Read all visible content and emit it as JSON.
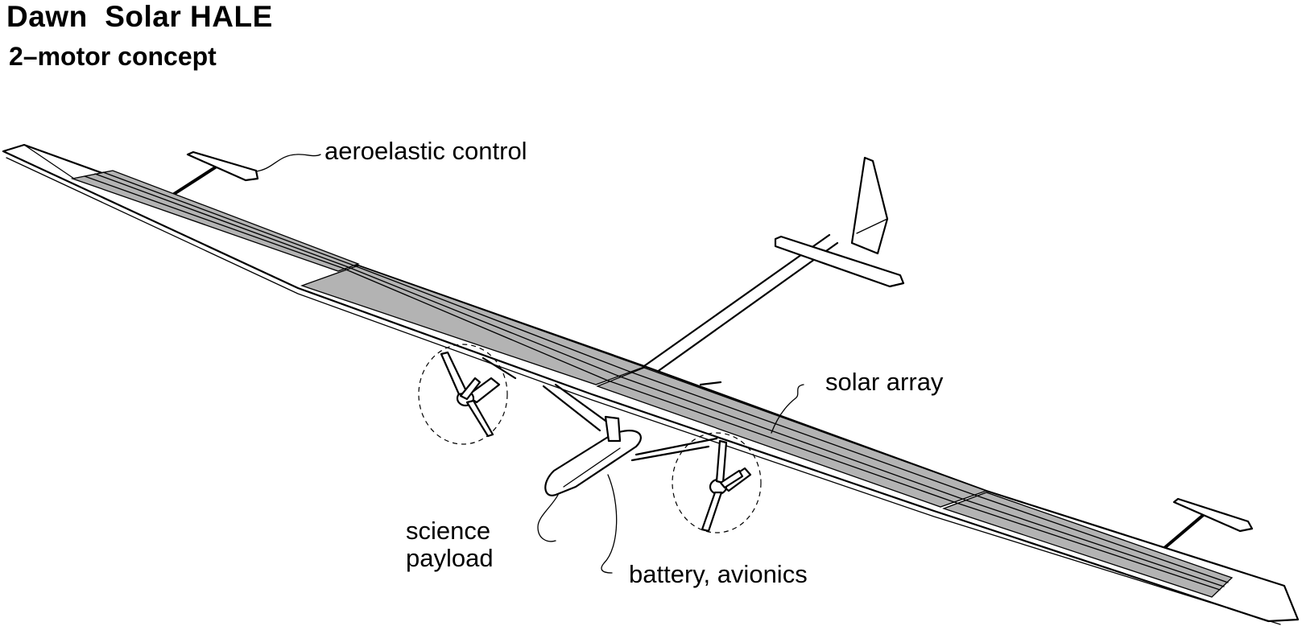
{
  "header": {
    "title": "Dawn  Solar HALE",
    "subtitle": "2–motor concept"
  },
  "callouts": {
    "aeroelastic_control": "aeroelastic control",
    "solar_array": "solar array",
    "science_payload": "science\npayload",
    "battery_avionics": "battery, avionics"
  }
}
